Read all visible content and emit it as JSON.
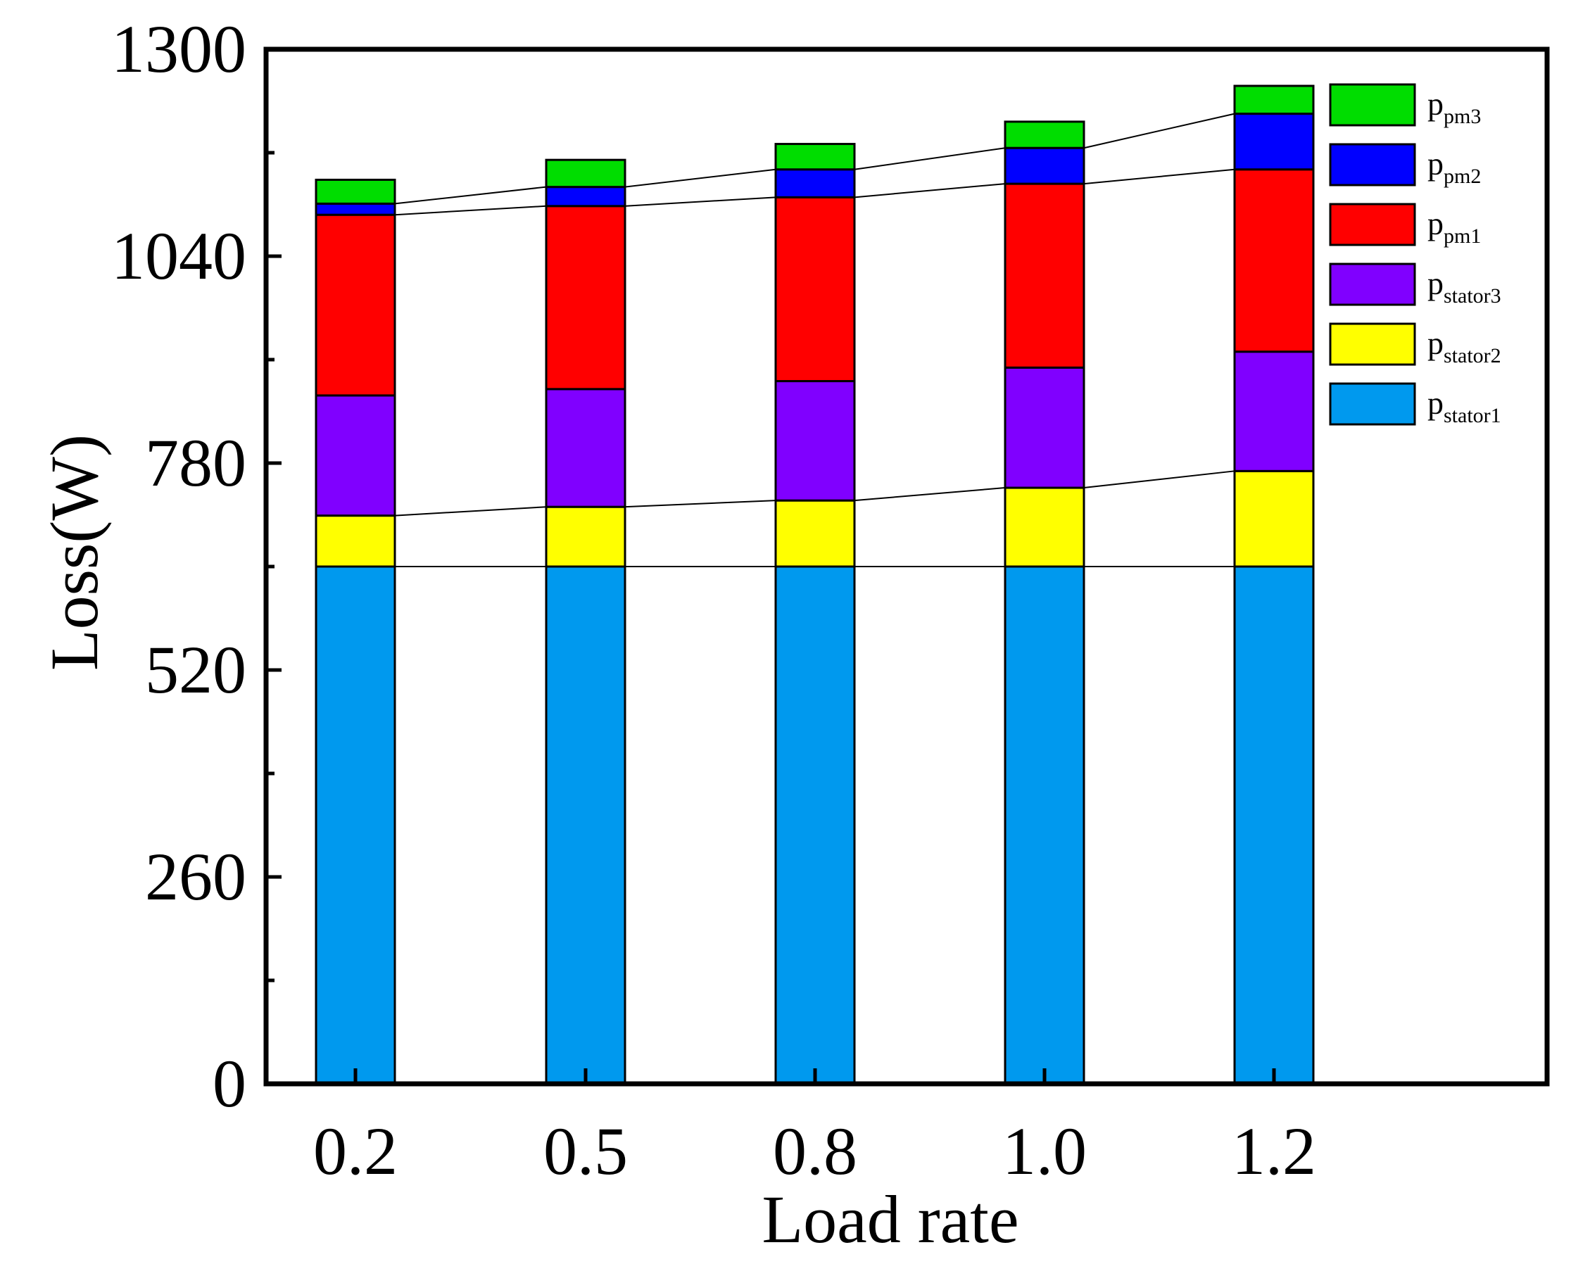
{
  "chart_data": {
    "type": "bar",
    "stacked": true,
    "title": "",
    "xlabel": "Load rate",
    "ylabel": "Loss(W)",
    "categories": [
      "0.2",
      "0.5",
      "0.8",
      "1.0",
      "1.2"
    ],
    "ylim": [
      0,
      1300
    ],
    "yticks": [
      "0",
      "260",
      "520",
      "780",
      "1040",
      "1300"
    ],
    "ytick_values": [
      0,
      260,
      520,
      780,
      1040,
      1300
    ],
    "legend_position": "top-right",
    "connector_lines": true,
    "series": [
      {
        "name": "p",
        "sub": "stator1",
        "color": "#0099ee",
        "values": [
          650,
          650,
          650,
          650,
          650
        ]
      },
      {
        "name": "p",
        "sub": "stator2",
        "color": "#ffff00",
        "values": [
          64,
          75,
          83,
          99,
          120
        ]
      },
      {
        "name": "p",
        "sub": "stator3",
        "color": "#8000ff",
        "values": [
          151,
          148,
          150,
          151,
          150
        ]
      },
      {
        "name": "p",
        "sub": "pm1",
        "color": "#ff0000",
        "values": [
          227,
          230,
          231,
          231,
          229
        ]
      },
      {
        "name": "p",
        "sub": "pm2",
        "color": "#0000ff",
        "values": [
          14,
          24,
          35,
          45,
          70
        ]
      },
      {
        "name": "p",
        "sub": "pm3",
        "color": "#00dd00",
        "values": [
          30,
          34,
          32,
          33,
          35
        ]
      }
    ]
  }
}
